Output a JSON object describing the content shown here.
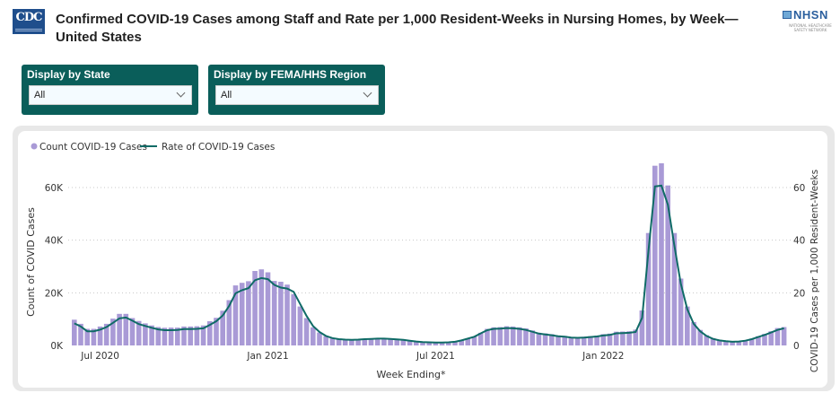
{
  "header": {
    "logo_text": "CDC",
    "title": "Confirmed COVID-19 Cases among Staff and Rate per 1,000 Resident-Weeks in Nursing Homes, by Week— United States",
    "partner_logo": "NHSN",
    "partner_subtext": "NATIONAL HEALTHCARE SAFETY NETWORK"
  },
  "filters": [
    {
      "label": "Display by State",
      "value": "All"
    },
    {
      "label": "Display by FEMA/HHS Region",
      "value": "All"
    }
  ],
  "colors": {
    "bar": "#a99ad6",
    "line": "#0f6b66",
    "filter_bg": "#0a5e5a"
  },
  "chart_data": {
    "type": "bar+line",
    "title": "",
    "legend": [
      {
        "name": "Count COVID-19 Cases",
        "marker": "dot"
      },
      {
        "name": "Rate of COVID-19 Cases",
        "marker": "line"
      }
    ],
    "legend_placement": "top-left",
    "xlabel": "Week Ending*",
    "ylabel": "Count of COVID Cases",
    "y2label": "COVID-19 Cases per 1,000 Resident-Weeks",
    "x_ticks": [
      "Jul 2020",
      "Jan 2021",
      "Jul 2021",
      "Jan 2022"
    ],
    "y_ticks": [
      "0K",
      "20K",
      "40K",
      "60K"
    ],
    "y2_ticks": [
      "0",
      "20",
      "40",
      "60"
    ],
    "ylim": [
      0,
      70000
    ],
    "y2lim": [
      0,
      70
    ],
    "grid": true,
    "series": [
      {
        "name": "Count COVID-19 Cases",
        "type": "bar",
        "values": [
          9800,
          8200,
          6300,
          6300,
          7200,
          8200,
          10200,
          12000,
          12000,
          10400,
          9300,
          8400,
          7600,
          7000,
          6700,
          6800,
          6800,
          7200,
          7200,
          7300,
          7600,
          9200,
          10500,
          13200,
          17200,
          22800,
          23800,
          24400,
          28300,
          28900,
          27800,
          24500,
          24200,
          23100,
          19500,
          14800,
          10400,
          6900,
          4900,
          3500,
          2700,
          2400,
          2300,
          2200,
          2300,
          2500,
          2600,
          2700,
          2700,
          2600,
          2400,
          2200,
          1900,
          1600,
          1400,
          1300,
          1200,
          1200,
          1300,
          1500,
          2000,
          2700,
          3400,
          4800,
          6300,
          6900,
          7000,
          7300,
          7200,
          6900,
          6500,
          5700,
          4800,
          4600,
          4300,
          3800,
          3600,
          3200,
          3100,
          3300,
          3500,
          3700,
          4300,
          4500,
          5200,
          5300,
          5400,
          6000,
          13300,
          42700,
          68300,
          69200,
          60800,
          42700,
          25400,
          14800,
          8900,
          5900,
          3900,
          2800,
          2000,
          1700,
          1500,
          1600,
          2000,
          2600,
          3500,
          4400,
          5400,
          6600,
          7000
        ],
        "unit": "cases"
      },
      {
        "name": "Rate of COVID-19 Cases",
        "type": "line",
        "values": [
          8.4,
          7.2,
          5.4,
          5.4,
          6.0,
          7.0,
          8.6,
          10.3,
          10.6,
          9.4,
          8.1,
          7.4,
          6.7,
          6.1,
          5.8,
          5.8,
          5.9,
          6.2,
          6.2,
          6.3,
          6.5,
          7.8,
          9.2,
          11.4,
          15.0,
          19.8,
          21.0,
          21.8,
          24.8,
          25.6,
          25.2,
          23.0,
          22.0,
          21.6,
          20.4,
          15.8,
          11.2,
          7.4,
          5.1,
          3.6,
          2.8,
          2.4,
          2.2,
          2.1,
          2.2,
          2.4,
          2.5,
          2.6,
          2.6,
          2.5,
          2.3,
          2.1,
          1.8,
          1.5,
          1.3,
          1.2,
          1.1,
          1.1,
          1.2,
          1.4,
          1.9,
          2.6,
          3.3,
          4.6,
          5.8,
          6.3,
          6.4,
          6.6,
          6.5,
          6.3,
          5.9,
          5.2,
          4.5,
          4.2,
          3.9,
          3.5,
          3.3,
          3.0,
          2.9,
          3.0,
          3.2,
          3.4,
          3.8,
          4.0,
          4.6,
          4.7,
          4.8,
          5.1,
          10.5,
          36.0,
          60.4,
          60.7,
          53.5,
          38.0,
          23.5,
          13.8,
          8.2,
          5.4,
          3.6,
          2.5,
          1.9,
          1.6,
          1.4,
          1.5,
          1.8,
          2.4,
          3.2,
          4.0,
          4.9,
          5.9,
          6.5
        ],
        "unit": "per 1,000 resident-weeks"
      }
    ]
  }
}
